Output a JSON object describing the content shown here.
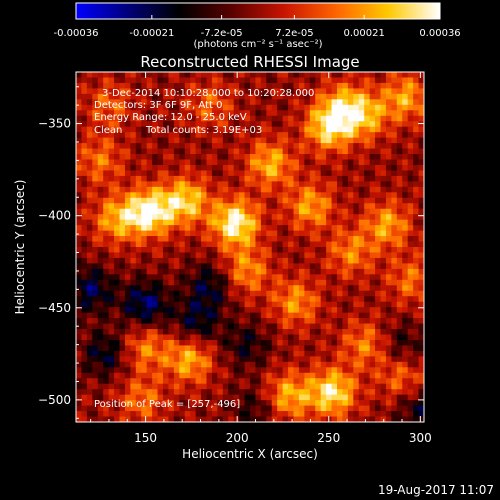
{
  "chart_data": {
    "type": "heatmap",
    "title": "Reconstructed RHESSI Image",
    "xlabel": "Heliocentric X (arcsec)",
    "ylabel": "Heliocentric Y (arcsec)",
    "xlim": [
      112,
      302
    ],
    "ylim": [
      -512,
      -322
    ],
    "xticks": [
      150,
      200,
      250,
      300
    ],
    "yticks": [
      -500,
      -450,
      -400,
      -350
    ],
    "xtick_labels": [
      "150",
      "200",
      "250",
      "300"
    ],
    "ytick_labels": [
      "−500",
      "−450",
      "−400",
      "−350"
    ],
    "colorbar": {
      "range": [
        -0.00036,
        0.00036
      ],
      "ticks": [
        -0.00036,
        -0.00021,
        -7.2e-05,
        7.2e-05,
        0.00021,
        0.00036
      ],
      "tick_labels": [
        "-0.00036",
        "-0.00021",
        "-7.2e-05",
        "7.2e-05",
        "0.00021",
        "0.00036"
      ],
      "unit_label": "(photons cm⁻² s⁻¹ asec⁻²)",
      "colormap": [
        "#0000ff",
        "#00007a",
        "#000000",
        "#5a0000",
        "#c81400",
        "#ff6400",
        "#ffc800",
        "#ffffff"
      ]
    },
    "annotations": {
      "time": "3-Dec-2014 10:10:28.000 to 10:20:28.000",
      "detectors": "Detectors: 3F 6F 9F, Att 0",
      "energy": "Energy Range: 12.0 - 25.0 keV",
      "method": "Clean",
      "counts": "Total counts: 3.19E+03",
      "peak": "Position of Peak = [257,-496]"
    },
    "peak": [
      257,
      -496
    ],
    "peak_value": 0.00036,
    "image_grid": {
      "nx": 64,
      "ny": 64
    },
    "blobs": [
      {
        "x": 152,
        "y": -398,
        "amp": 0.00036
      },
      {
        "x": 199,
        "y": -404,
        "amp": 0.00036
      },
      {
        "x": 172,
        "y": -392,
        "amp": 0.00028
      },
      {
        "x": 134,
        "y": -402,
        "amp": 0.00022
      },
      {
        "x": 218,
        "y": -372,
        "amp": 0.00024
      },
      {
        "x": 250,
        "y": -352,
        "amp": 0.0003
      },
      {
        "x": 270,
        "y": -346,
        "amp": 0.00022
      },
      {
        "x": 292,
        "y": -336,
        "amp": 0.00022
      },
      {
        "x": 258,
        "y": -340,
        "amp": 0.0002
      },
      {
        "x": 240,
        "y": -395,
        "amp": 0.00022
      },
      {
        "x": 282,
        "y": -405,
        "amp": 0.00022
      },
      {
        "x": 262,
        "y": -420,
        "amp": 0.00018
      },
      {
        "x": 295,
        "y": -435,
        "amp": 0.00016
      },
      {
        "x": 232,
        "y": -447,
        "amp": 0.0002
      },
      {
        "x": 270,
        "y": -470,
        "amp": 0.00018
      },
      {
        "x": 252,
        "y": -496,
        "amp": 0.00032
      },
      {
        "x": 228,
        "y": -498,
        "amp": 0.00024
      },
      {
        "x": 290,
        "y": -488,
        "amp": 0.00016
      },
      {
        "x": 150,
        "y": -472,
        "amp": 0.00018
      },
      {
        "x": 174,
        "y": -478,
        "amp": 0.00024
      },
      {
        "x": 148,
        "y": -500,
        "amp": 0.00016
      },
      {
        "x": 130,
        "y": -340,
        "amp": 0.00014
      },
      {
        "x": 185,
        "y": -340,
        "amp": 0.00014
      },
      {
        "x": 125,
        "y": -370,
        "amp": 0.00016
      },
      {
        "x": 205,
        "y": -430,
        "amp": 0.0002
      },
      {
        "x": 120,
        "y": -440,
        "amp": -0.00021
      },
      {
        "x": 150,
        "y": -448,
        "amp": -0.00024
      },
      {
        "x": 185,
        "y": -438,
        "amp": -0.00018
      },
      {
        "x": 178,
        "y": -458,
        "amp": -0.00018
      },
      {
        "x": 128,
        "y": -475,
        "amp": -0.00018
      },
      {
        "x": 205,
        "y": -470,
        "amp": -0.00014
      },
      {
        "x": 290,
        "y": -470,
        "amp": -0.00012
      },
      {
        "x": 300,
        "y": -505,
        "amp": -0.00016
      },
      {
        "x": 210,
        "y": -505,
        "amp": -0.00012
      }
    ]
  },
  "footer": {
    "timestamp": "19-Aug-2017 11:07"
  }
}
